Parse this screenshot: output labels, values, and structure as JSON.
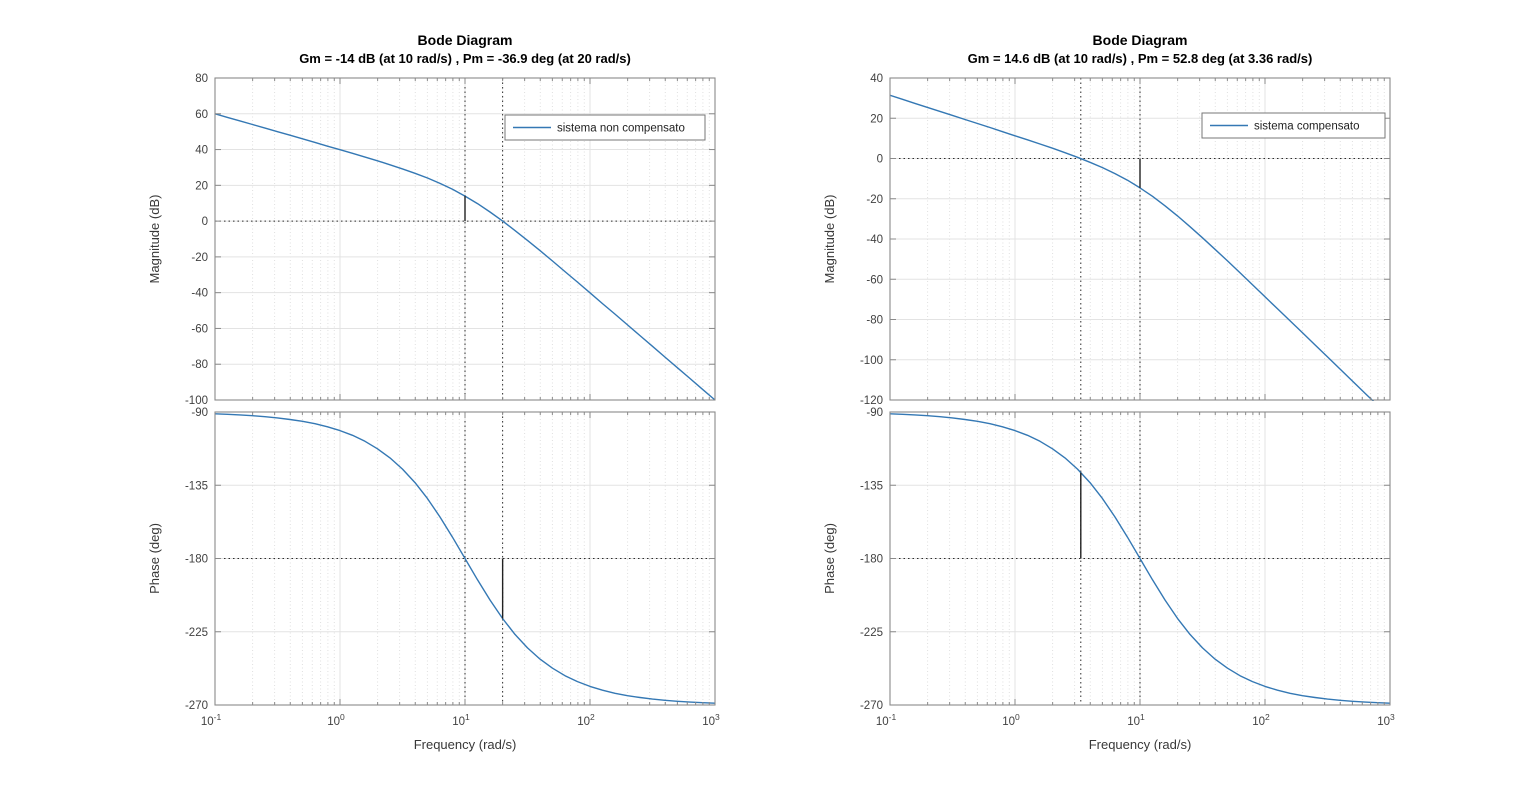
{
  "figure": {
    "background": "#ffffff",
    "line_color": "#3478b4",
    "marker_color": "#2b2b2b",
    "grid_major_color": "#e3e3e3",
    "grid_minor_color": "#dcdcdc",
    "axis_color": "#8a8a8a",
    "tick_label_color": "#414141",
    "title_color": "#000000"
  },
  "chart_data": [
    {
      "type": "line",
      "x_scale": "log",
      "title": "Bode Diagram",
      "subtitle": "Gm = -14 dB (at 10 rad/s) ,  Pm = -36.9 deg (at 20 rad/s)",
      "legend": "sistema non compensato",
      "xlabel": "Frequency  (rad/s)",
      "mag_ylabel": "Magnitude (dB)",
      "phase_ylabel": "Phase (deg)",
      "x_tick_exponents": [
        -1,
        0,
        1,
        2,
        3
      ],
      "xlim_log": [
        -1,
        3
      ],
      "mag_ylim": [
        -100,
        80
      ],
      "mag_yticks": [
        80,
        60,
        40,
        20,
        0,
        -20,
        -40,
        -60,
        -80,
        -100
      ],
      "phase_ylim": [
        -270,
        -90
      ],
      "phase_yticks": [
        -90,
        -135,
        -180,
        -225,
        -270
      ],
      "margins": {
        "gm_db": -14,
        "gm_freq": 10,
        "pm_deg": -36.9,
        "pm_freq": 20
      },
      "logw": [
        -1,
        -0.9,
        -0.8,
        -0.7,
        -0.6,
        -0.5,
        -0.4,
        -0.3,
        -0.2,
        -0.1,
        0,
        0.1,
        0.2,
        0.3,
        0.4,
        0.5,
        0.6,
        0.7,
        0.8,
        0.9,
        1,
        1.1,
        1.2,
        1.3,
        1.4,
        1.5,
        1.6,
        1.7,
        1.8,
        1.9,
        2,
        2.1,
        2.2,
        2.3,
        2.4,
        2.5,
        2.6,
        2.7,
        2.8,
        2.9,
        3
      ],
      "mag": [
        60,
        58,
        56,
        54,
        52,
        50,
        48,
        46,
        44,
        41.9,
        39.9,
        37.9,
        35.8,
        33.7,
        31.5,
        29.2,
        26.7,
        24.1,
        21.1,
        17.8,
        14,
        9.8,
        5.1,
        0.1,
        -5.3,
        -10.8,
        -16.5,
        -22.3,
        -28.2,
        -34.1,
        -40.1,
        -46.1,
        -52,
        -58,
        -64,
        -70,
        -76,
        -82,
        -88,
        -94,
        -100
      ],
      "phase": [
        -91.1,
        -91.4,
        -91.8,
        -92.3,
        -92.9,
        -93.6,
        -94.6,
        -95.7,
        -97.2,
        -99.1,
        -101.4,
        -104.3,
        -108,
        -112.6,
        -118.2,
        -125.1,
        -133.4,
        -143.2,
        -154.5,
        -166.9,
        -180,
        -193.1,
        -205.5,
        -216.8,
        -226.6,
        -234.9,
        -241.8,
        -247.4,
        -252,
        -255.6,
        -258.6,
        -260.9,
        -262.8,
        -264.3,
        -265.4,
        -266.4,
        -267.1,
        -267.7,
        -268.2,
        -268.6,
        -268.9
      ],
      "markers": {
        "mag": {
          "h_dotted": 0,
          "v_dotted": [
            1.0,
            1.30103
          ],
          "solid": {
            "logw": 1.0,
            "from": 0,
            "to": 14
          }
        },
        "phase": {
          "h_dotted": -180,
          "v_dotted": [
            1.0,
            1.30103
          ],
          "solid": {
            "logw": 1.30103,
            "from": -180,
            "to": -216.9
          }
        }
      }
    },
    {
      "type": "line",
      "x_scale": "log",
      "title": "Bode Diagram",
      "subtitle": "Gm = 14.6 dB (at 10 rad/s) ,  Pm = 52.8 deg (at 3.36 rad/s)",
      "legend": "sistema compensato",
      "xlabel": "Frequency  (rad/s)",
      "mag_ylabel": "Magnitude (dB)",
      "phase_ylabel": "Phase (deg)",
      "x_tick_exponents": [
        -1,
        0,
        1,
        2,
        3
      ],
      "xlim_log": [
        -1,
        3
      ],
      "mag_ylim": [
        -120,
        40
      ],
      "mag_yticks": [
        40,
        20,
        0,
        -20,
        -40,
        -60,
        -80,
        -100,
        -120
      ],
      "phase_ylim": [
        -270,
        -90
      ],
      "phase_yticks": [
        -90,
        -135,
        -180,
        -225,
        -270
      ],
      "margins": {
        "gm_db": 14.6,
        "gm_freq": 10,
        "pm_deg": 52.8,
        "pm_freq": 3.36
      },
      "logw": [
        -1,
        -0.9,
        -0.8,
        -0.7,
        -0.6,
        -0.5,
        -0.4,
        -0.3,
        -0.2,
        -0.1,
        0,
        0.1,
        0.2,
        0.3,
        0.4,
        0.5,
        0.6,
        0.7,
        0.8,
        0.9,
        1,
        1.1,
        1.2,
        1.3,
        1.4,
        1.5,
        1.6,
        1.7,
        1.8,
        1.9,
        2,
        2.1,
        2.2,
        2.3,
        2.4,
        2.5,
        2.6,
        2.7,
        2.8,
        2.9,
        3
      ],
      "mag": [
        31.4,
        29.4,
        27.4,
        25.4,
        23.4,
        21.4,
        19.4,
        17.4,
        15.4,
        13.3,
        11.3,
        9.3,
        7.2,
        5.1,
        2.9,
        0.6,
        -1.9,
        -4.5,
        -7.5,
        -10.8,
        -14.6,
        -18.8,
        -23.5,
        -28.5,
        -33.9,
        -39.4,
        -45.1,
        -50.9,
        -56.8,
        -62.7,
        -68.7,
        -74.7,
        -80.6,
        -86.6,
        -92.6,
        -98.6,
        -104.6,
        -110.6,
        -116.6,
        -122.6,
        -128.6
      ],
      "phase": [
        -91.1,
        -91.4,
        -91.8,
        -92.3,
        -92.9,
        -93.6,
        -94.6,
        -95.7,
        -97.2,
        -99.1,
        -101.4,
        -104.3,
        -108,
        -112.6,
        -118.2,
        -125.1,
        -133.4,
        -143.2,
        -154.5,
        -166.9,
        -180,
        -193.1,
        -205.5,
        -216.8,
        -226.6,
        -234.9,
        -241.8,
        -247.4,
        -252,
        -255.6,
        -258.6,
        -260.9,
        -262.8,
        -264.3,
        -265.4,
        -266.4,
        -267.1,
        -267.7,
        -268.2,
        -268.6,
        -268.9
      ],
      "markers": {
        "mag": {
          "h_dotted": 0,
          "v_dotted": [
            0.52634,
            1.0
          ],
          "solid": {
            "logw": 1.0,
            "from": 0,
            "to": -14.6
          }
        },
        "phase": {
          "h_dotted": -180,
          "v_dotted": [
            0.52634,
            1.0
          ],
          "solid": {
            "logw": 0.52634,
            "from": -127.2,
            "to": -180
          }
        }
      }
    }
  ]
}
